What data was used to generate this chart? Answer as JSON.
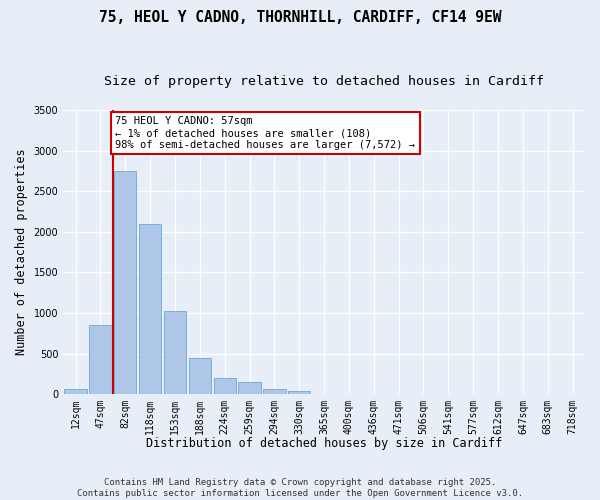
{
  "title_line1": "75, HEOL Y CADNO, THORNHILL, CARDIFF, CF14 9EW",
  "title_line2": "Size of property relative to detached houses in Cardiff",
  "xlabel": "Distribution of detached houses by size in Cardiff",
  "ylabel": "Number of detached properties",
  "categories": [
    "12sqm",
    "47sqm",
    "82sqm",
    "118sqm",
    "153sqm",
    "188sqm",
    "224sqm",
    "259sqm",
    "294sqm",
    "330sqm",
    "365sqm",
    "400sqm",
    "436sqm",
    "471sqm",
    "506sqm",
    "541sqm",
    "577sqm",
    "612sqm",
    "647sqm",
    "683sqm",
    "718sqm"
  ],
  "values": [
    60,
    850,
    2750,
    2100,
    1020,
    450,
    200,
    145,
    60,
    35,
    0,
    5,
    3,
    2,
    1,
    0,
    0,
    0,
    0,
    0,
    0
  ],
  "bar_color": "#aec6e8",
  "bar_edge_color": "#6aaad4",
  "vline_color": "#cc0000",
  "vline_x": 1.5,
  "annotation_text": "75 HEOL Y CADNO: 57sqm\n← 1% of detached houses are smaller (108)\n98% of semi-detached houses are larger (7,572) →",
  "annotation_box_color": "#ffffff",
  "annotation_box_edge_color": "#cc0000",
  "ylim": [
    0,
    3500
  ],
  "yticks": [
    0,
    500,
    1000,
    1500,
    2000,
    2500,
    3000,
    3500
  ],
  "background_color": "#e8eef8",
  "plot_bg_color": "#e8eef8",
  "footer_line1": "Contains HM Land Registry data © Crown copyright and database right 2025.",
  "footer_line2": "Contains public sector information licensed under the Open Government Licence v3.0.",
  "title_fontsize": 10.5,
  "subtitle_fontsize": 9.5,
  "xlabel_fontsize": 8.5,
  "ylabel_fontsize": 8.5,
  "tick_fontsize": 7,
  "annotation_fontsize": 7.5,
  "footer_fontsize": 6.5
}
